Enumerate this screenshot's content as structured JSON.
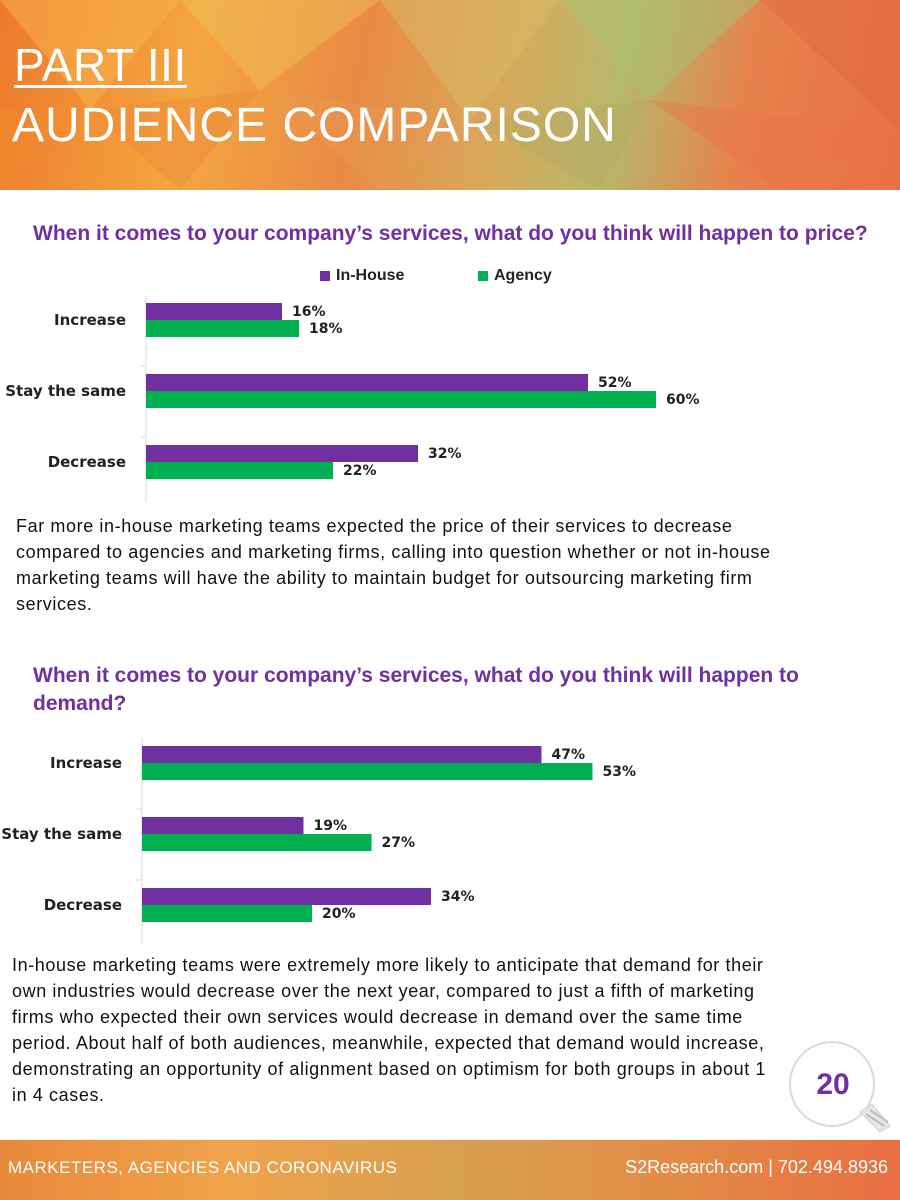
{
  "header": {
    "part": "PART III",
    "title": "AUDIENCE COMPARISON"
  },
  "legend": {
    "in_house": "In-House",
    "agency": "Agency"
  },
  "colors": {
    "in_house": "#7030a0",
    "agency": "#00b050",
    "question": "#7030a0"
  },
  "chart_data": [
    {
      "type": "bar",
      "orientation": "horizontal",
      "title": "When it comes to your company’s services, what do you think will happen to price?",
      "categories": [
        "Increase",
        "Stay the same",
        "Decrease"
      ],
      "series": [
        {
          "name": "In-House",
          "values": [
            16,
            52,
            32
          ],
          "labels": [
            "16%",
            "52%",
            "32%"
          ]
        },
        {
          "name": "Agency",
          "values": [
            18,
            60,
            22
          ],
          "labels": [
            "18%",
            "60%",
            "22%"
          ]
        }
      ],
      "unit": "%",
      "legend_position": "top"
    },
    {
      "type": "bar",
      "orientation": "horizontal",
      "title": "When it comes to your company’s services, what do you think will happen to demand?",
      "categories": [
        "Increase",
        "Stay the same",
        "Decrease"
      ],
      "series": [
        {
          "name": "In-House",
          "values": [
            47,
            19,
            34
          ],
          "labels": [
            "47%",
            "19%",
            "34%"
          ]
        },
        {
          "name": "Agency",
          "values": [
            53,
            27,
            20
          ],
          "labels": [
            "53%",
            "27%",
            "20%"
          ]
        }
      ],
      "unit": "%"
    }
  ],
  "paragraphs": {
    "price": "Far more in-house marketing teams expected the price of their services to decrease compared to agencies and marketing firms, calling into question whether or not in-house marketing teams will have the ability to maintain budget for outsourcing marketing firm services.",
    "demand": "In-house marketing teams were extremely more likely to anticipate that demand for their own industries would decrease over the next year, compared to just a fifth of marketing firms who expected their own services would decrease in demand over the same time period. About half of both audiences, meanwhile, expected that demand would increase, demonstrating an opportunity of alignment based on optimism for both groups in about 1 in 4 cases."
  },
  "page_number": "20",
  "footer": {
    "left": "MARKETERS, AGENCIES AND CORONAVIRUS",
    "right": "S2Research.com | 702.494.8936"
  }
}
